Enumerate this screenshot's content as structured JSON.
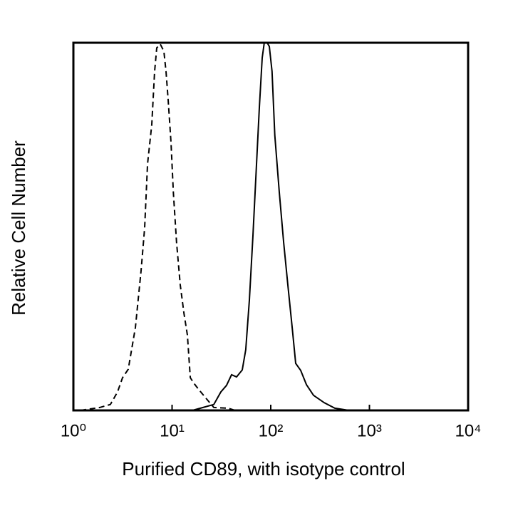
{
  "chart_data": {
    "type": "line",
    "xlabel": "Purified CD89, with isotype control",
    "ylabel": "Relative Cell Number",
    "xscale": "log",
    "xlim": [
      1,
      10000
    ],
    "ylim": [
      0,
      100
    ],
    "xticks": [
      {
        "value": 1,
        "label": "10⁰"
      },
      {
        "value": 10,
        "label": "10¹"
      },
      {
        "value": 100,
        "label": "10²"
      },
      {
        "value": 1000,
        "label": "10³"
      },
      {
        "value": 10000,
        "label": "10⁴"
      }
    ],
    "series": [
      {
        "color": "#000000",
        "style": "dashed",
        "x": [
          1.18,
          1.85,
          2.37,
          2.8,
          3.15,
          3.6,
          4.25,
          4.85,
          5.27,
          5.64,
          6.23,
          6.65,
          7.0,
          7.6,
          8.26,
          8.68,
          9.13,
          9.75,
          10.3,
          11.1,
          12.1,
          13.2,
          14.3,
          15.3,
          16.6,
          19.0,
          22.4,
          26.5,
          36.9,
          43.5
        ],
        "values": [
          0,
          0.8,
          1.6,
          5.0,
          8.9,
          11.2,
          22.5,
          38.0,
          49.6,
          67.1,
          77.7,
          92.2,
          98.6,
          99.6,
          97.7,
          92.2,
          84.5,
          72.9,
          59.3,
          45.7,
          34.1,
          26.4,
          20.5,
          8.9,
          7.4,
          5.4,
          3.1,
          0.8,
          0.6,
          0
        ]
      },
      {
        "color": "#000000",
        "style": "solid",
        "x": [
          16.1,
          20.6,
          26.5,
          31.2,
          35.6,
          40.1,
          45.0,
          51.4,
          55.8,
          60.7,
          66.0,
          71.7,
          76.6,
          81.9,
          86.0,
          92.0,
          96.8,
          103,
          110,
          122,
          135,
          149,
          165,
          179,
          201,
          230,
          271,
          348,
          446,
          622,
          8900
        ],
        "values": [
          0,
          0.8,
          1.6,
          5.0,
          6.8,
          9.7,
          9.1,
          11.0,
          16.5,
          30.0,
          47.5,
          66.9,
          82.4,
          95.9,
          100,
          100,
          99.0,
          92.2,
          74.8,
          59.3,
          45.7,
          34.1,
          22.5,
          12.8,
          10.9,
          7.0,
          4.1,
          2.1,
          0.6,
          0,
          0
        ]
      }
    ]
  }
}
